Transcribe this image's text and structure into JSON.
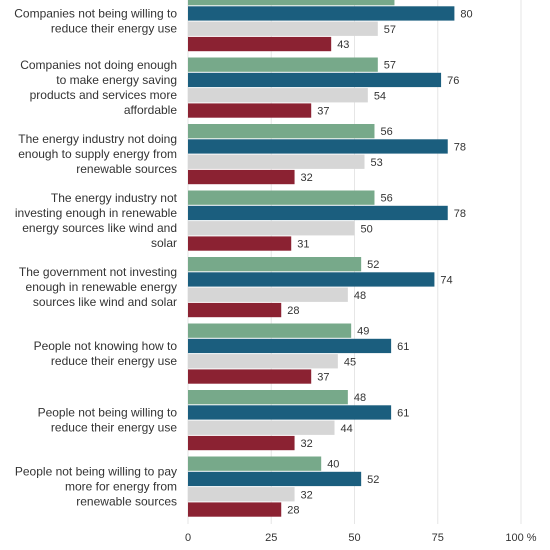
{
  "chart_data": {
    "type": "bar",
    "orientation": "horizontal",
    "title": "",
    "xlabel": "",
    "ylabel": "",
    "xlim": [
      0,
      100
    ],
    "x_ticks": [
      "0",
      "25",
      "50",
      "75",
      "100 %"
    ],
    "grid": true,
    "legend": "none",
    "categories": [
      [
        "Companies not being willing to",
        "reduce their energy use"
      ],
      [
        "Companies not doing enough",
        "to make energy saving",
        "products and services more",
        "affordable"
      ],
      [
        "The energy industry not doing",
        "enough to supply energy from",
        "renewable sources"
      ],
      [
        "The energy industry not",
        "investing enough in renewable",
        "energy sources like wind and",
        "solar"
      ],
      [
        "The government not investing",
        "enough in renewable energy",
        "sources like wind and solar"
      ],
      [
        "People not knowing how to",
        "reduce their energy use"
      ],
      [
        "People not being willing to",
        "reduce their energy use"
      ],
      [
        "People not being willing to pay",
        "more for energy from",
        "renewable sources"
      ]
    ],
    "series": [
      {
        "color": "#77a98a",
        "values": [
          62,
          57,
          56,
          56,
          52,
          49,
          48,
          40
        ]
      },
      {
        "color": "#1b5e7e",
        "values": [
          80,
          76,
          78,
          78,
          74,
          61,
          61,
          52
        ]
      },
      {
        "color": "#d6d6d6",
        "values": [
          57,
          54,
          53,
          50,
          48,
          45,
          44,
          32
        ]
      },
      {
        "color": "#8b2232",
        "values": [
          43,
          37,
          32,
          31,
          28,
          37,
          32,
          28
        ]
      }
    ],
    "value_labels": [
      [
        "",
        "80",
        "57",
        "43"
      ],
      [
        "57",
        "76",
        "54",
        "37"
      ],
      [
        "56",
        "78",
        "53",
        "32"
      ],
      [
        "56",
        "78",
        "50",
        "31"
      ],
      [
        "52",
        "74",
        "48",
        "28"
      ],
      [
        "49",
        "61",
        "45",
        "37"
      ],
      [
        "48",
        "61",
        "44",
        "32"
      ],
      [
        "40",
        "52",
        "32",
        "28"
      ]
    ]
  }
}
